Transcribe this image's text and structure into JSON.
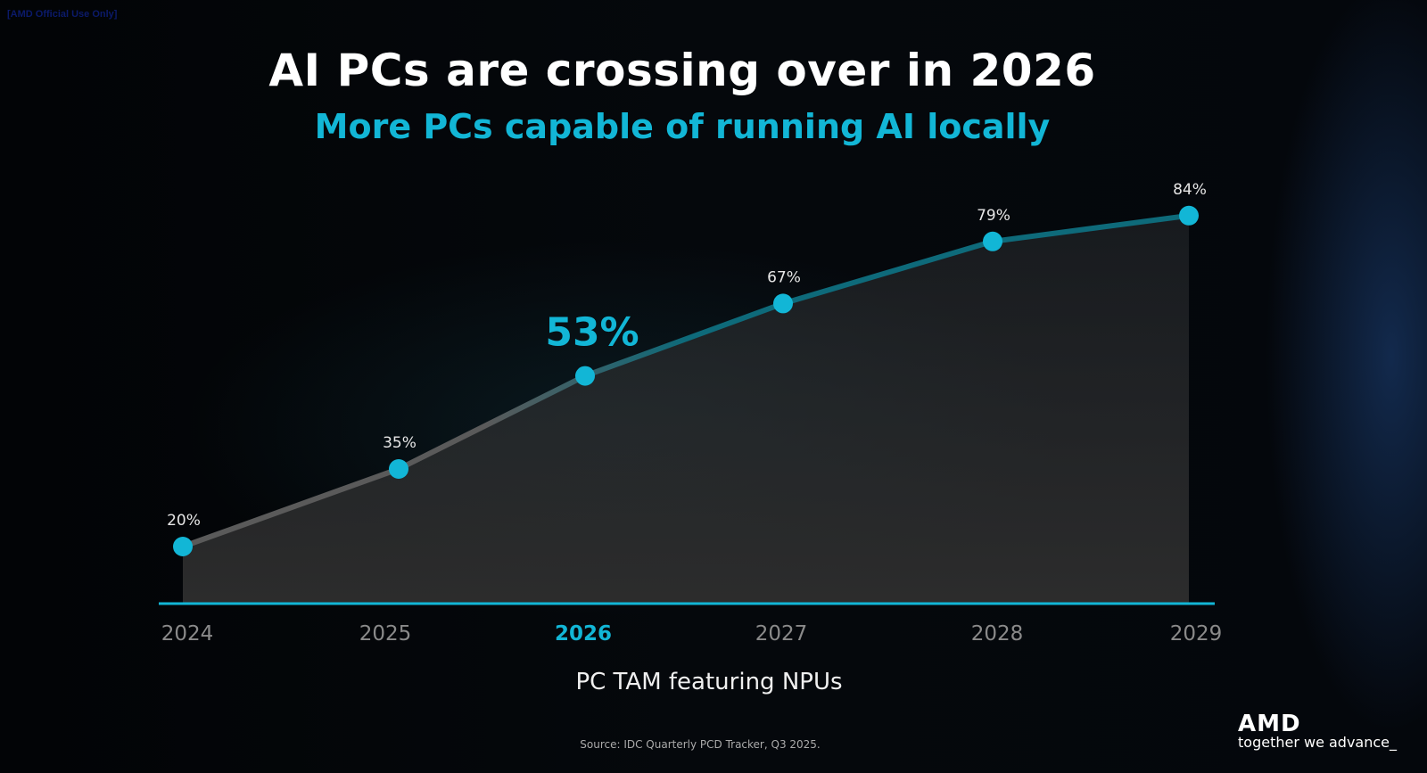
{
  "header": {
    "confidentiality": "[AMD Official Use Only]",
    "title": "AI PCs are crossing over in 2026",
    "subtitle": "More PCs capable of running AI locally"
  },
  "chart_data": {
    "type": "line",
    "title": "AI PCs are crossing over in 2026",
    "subtitle": "More PCs capable of running AI locally",
    "categories": [
      "2024",
      "2025",
      "2026",
      "2027",
      "2028",
      "2029"
    ],
    "values": [
      20,
      35,
      53,
      67,
      79,
      84
    ],
    "labels": [
      "20%",
      "35%",
      "53%",
      "67%",
      "79%",
      "84%"
    ],
    "highlight": "2026",
    "xlabel": "PC TAM featuring NPUs",
    "ylabel": "",
    "unit": "%",
    "grid": false,
    "colors": {
      "accent": "#12b6d6",
      "line_start": "#555555",
      "axis": "#12b6d6"
    }
  },
  "footer": {
    "source": "Source: IDC Quarterly PCD Tracker, Q3 2025.",
    "brand": "AMD",
    "tagline": "together we advance_"
  }
}
